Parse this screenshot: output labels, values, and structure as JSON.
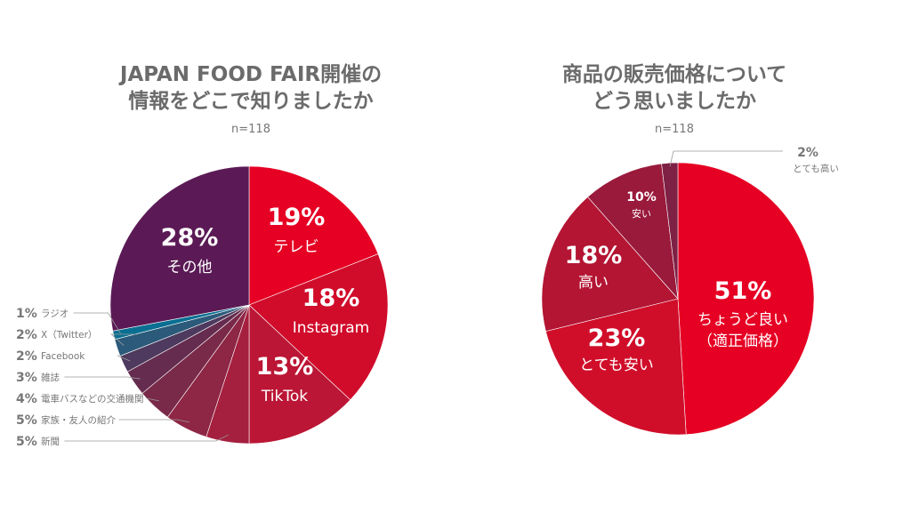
{
  "chart_data": [
    {
      "type": "pie",
      "title": "JAPAN FOOD FAIR開催の情報をどこで知りましたか",
      "title_lines": [
        "JAPAN FOOD FAIR開催の",
        "情報をどこで知りましたか"
      ],
      "subtitle": "n=118",
      "slices": [
        {
          "label": "テレビ",
          "pct_label": "19%",
          "value": 19,
          "color": "#e60023"
        },
        {
          "label": "Instagram",
          "pct_label": "18%",
          "value": 18,
          "color": "#d10c2b"
        },
        {
          "label": "TikTok",
          "pct_label": "13%",
          "value": 13,
          "color": "#bb1635"
        },
        {
          "label": "新聞",
          "pct_label": "5%",
          "value": 5,
          "color": "#a51f3e"
        },
        {
          "label": "家族・友人の紹介",
          "pct_label": "5%",
          "value": 5,
          "color": "#8e2645"
        },
        {
          "label": "電車バスなどの交通機関",
          "pct_label": "4%",
          "value": 4,
          "color": "#7a2a49"
        },
        {
          "label": "雑誌",
          "pct_label": "3%",
          "value": 3,
          "color": "#652c4f"
        },
        {
          "label": "Facebook",
          "pct_label": "2%",
          "value": 2,
          "color": "#4e3a5e"
        },
        {
          "label": "X（Twitter）",
          "pct_label": "2%",
          "value": 2,
          "color": "#2b5a7a"
        },
        {
          "label": "ラジオ",
          "pct_label": "1%",
          "value": 1,
          "color": "#0a6f92"
        },
        {
          "label": "その他",
          "pct_label": "28%",
          "value": 28,
          "color": "#5b1a55"
        }
      ]
    },
    {
      "type": "pie",
      "title": "商品の販売価格についてどう思いましたか",
      "title_lines": [
        "商品の販売価格について",
        "どう思いましたか"
      ],
      "subtitle": "n=118",
      "slices": [
        {
          "label": "ちょうど良い\n（適正価格）",
          "pct_label": "51%",
          "value": 51,
          "color": "#e60023"
        },
        {
          "label": "とても安い",
          "pct_label": "23%",
          "value": 23,
          "color": "#d00e2a"
        },
        {
          "label": "高い",
          "pct_label": "18%",
          "value": 18,
          "color": "#b31533"
        },
        {
          "label": "安い",
          "pct_label": "10%",
          "value": 10,
          "color": "#9a1a3c"
        },
        {
          "label": "とても高い",
          "pct_label": "2%",
          "value": 2,
          "color": "#7f2045"
        }
      ]
    }
  ]
}
